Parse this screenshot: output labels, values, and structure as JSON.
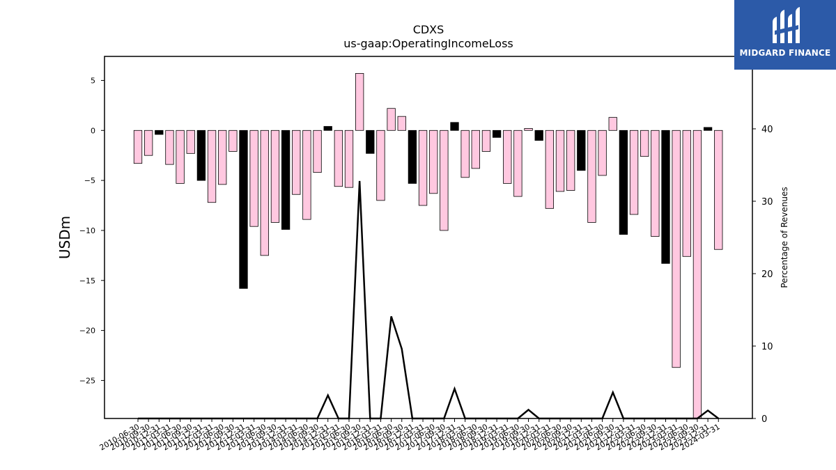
{
  "chart_data": {
    "type": "bar",
    "title": "CDXS",
    "subtitle": "us-gaap:OperatingIncomeLoss",
    "ylabel": "USDm",
    "y2label": "Percentage of Revenues",
    "ylim": [
      -28.8,
      7.4
    ],
    "y2lim": [
      0,
      50
    ],
    "yticks": [
      5,
      0,
      -5,
      -10,
      -15,
      -20,
      -25
    ],
    "y2ticks": [
      0,
      10,
      20,
      30,
      40
    ],
    "categories": [
      "2010-06-30",
      "2010-09-30",
      "2010-12-31",
      "2011-03-31",
      "2011-06-30",
      "2011-09-30",
      "2011-12-31",
      "2012-03-31",
      "2012-06-30",
      "2012-09-30",
      "2012-12-31",
      "2013-03-31",
      "2013-06-30",
      "2013-09-30",
      "2013-12-31",
      "2014-03-31",
      "2014-06-30",
      "2014-09-30",
      "2014-12-31",
      "2015-03-31",
      "2015-06-30",
      "2015-09-30",
      "2015-12-31",
      "2016-03-31",
      "2016-06-30",
      "2016-09-30",
      "2016-12-31",
      "2017-03-31",
      "2017-06-30",
      "2017-09-30",
      "2017-12-31",
      "2018-03-31",
      "2018-06-30",
      "2018-09-30",
      "2018-12-31",
      "2019-03-31",
      "2019-06-30",
      "2019-09-30",
      "2019-12-31",
      "2020-03-31",
      "2020-06-30",
      "2020-09-30",
      "2020-12-31",
      "2021-03-31",
      "2021-06-30",
      "2021-09-30",
      "2021-12-31",
      "2022-03-31",
      "2022-06-30",
      "2022-09-30",
      "2022-12-31",
      "2023-03-31",
      "2023-06-30",
      "2023-09-30",
      "2023-12-31",
      "2024-03-31"
    ],
    "values": [
      -3.3,
      -2.5,
      -0.4,
      -3.4,
      -5.3,
      -2.3,
      -5.0,
      -7.2,
      -5.4,
      -2.1,
      -15.8,
      -9.6,
      -12.5,
      -9.2,
      -9.9,
      -6.4,
      -8.9,
      -4.2,
      0.4,
      -5.6,
      -5.7,
      5.7,
      -2.3,
      -7.0,
      2.2,
      1.4,
      -5.3,
      -7.5,
      -6.3,
      -10.0,
      0.8,
      -4.7,
      -3.8,
      -2.1,
      -0.7,
      -5.3,
      -6.6,
      0.2,
      -1.0,
      -7.8,
      -6.1,
      -6.0,
      -4.0,
      -9.2,
      -4.5,
      1.3,
      -10.4,
      -8.4,
      -2.6,
      -10.6,
      -13.3,
      -23.7,
      -12.6,
      -28.9,
      0.3,
      -11.9
    ],
    "bar_colors": [
      "pink",
      "pink",
      "black",
      "pink",
      "pink",
      "pink",
      "black",
      "pink",
      "pink",
      "pink",
      "black",
      "pink",
      "pink",
      "pink",
      "black",
      "pink",
      "pink",
      "pink",
      "black",
      "pink",
      "pink",
      "pink",
      "black",
      "pink",
      "pink",
      "pink",
      "black",
      "pink",
      "pink",
      "pink",
      "black",
      "pink",
      "pink",
      "pink",
      "black",
      "pink",
      "pink",
      "pink",
      "black",
      "pink",
      "pink",
      "pink",
      "black",
      "pink",
      "pink",
      "pink",
      "black",
      "pink",
      "pink",
      "pink",
      "black",
      "pink",
      "pink",
      "pink",
      "black",
      "pink"
    ],
    "percentage_of_revenues": [
      0,
      0,
      0,
      0,
      0,
      0,
      0,
      0,
      0,
      0,
      0,
      0,
      0,
      0,
      0,
      0,
      0,
      0,
      3.2,
      0,
      0,
      32.8,
      0,
      0,
      14.1,
      9.6,
      0,
      0,
      0,
      0,
      4.1,
      0,
      0,
      0,
      0,
      0,
      0,
      1.2,
      0,
      0,
      0,
      0,
      0,
      0,
      0,
      3.6,
      0,
      0,
      0,
      0,
      0,
      0,
      0,
      0,
      1.1,
      0
    ],
    "colors": {
      "pink": "#ffc8e0",
      "black": "#000000",
      "line": "#000000"
    },
    "grid": false,
    "legend": "none"
  },
  "logo": {
    "text": "MIDGARD FINANCE",
    "bg": "#2c5aa8"
  }
}
